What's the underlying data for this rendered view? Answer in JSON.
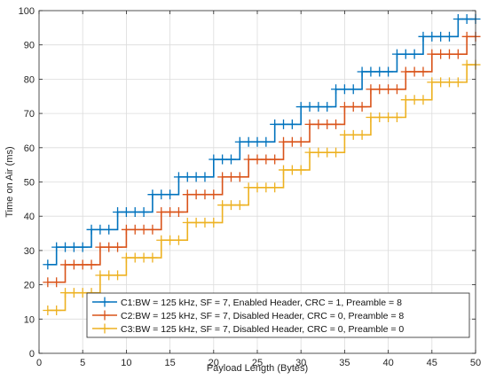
{
  "chart_data": {
    "type": "line",
    "xlabel": "Payload Length (Bytes)",
    "ylabel": "Time on Air (ms)",
    "xlim": [
      0,
      50
    ],
    "ylim": [
      0,
      100
    ],
    "xticks": [
      0,
      5,
      10,
      15,
      20,
      25,
      30,
      35,
      40,
      45,
      50
    ],
    "yticks": [
      0,
      10,
      20,
      30,
      40,
      50,
      60,
      70,
      80,
      90,
      100
    ],
    "grid": true,
    "legend_position": "lower-right",
    "step_plot": true,
    "marker": "plus",
    "x": [
      1,
      2,
      3,
      4,
      5,
      6,
      7,
      8,
      9,
      10,
      11,
      12,
      13,
      14,
      15,
      16,
      17,
      18,
      19,
      20,
      21,
      22,
      23,
      24,
      25,
      26,
      27,
      28,
      29,
      30,
      31,
      32,
      33,
      34,
      35,
      36,
      37,
      38,
      39,
      40,
      41,
      42,
      43,
      44,
      45,
      46,
      47,
      48,
      49,
      50
    ],
    "series": [
      {
        "name": "C1:BW = 125 kHz, SF = 7, Enabled Header, CRC = 1, Preamble = 8",
        "color": "#0072BD",
        "values": [
          25.9,
          30.98,
          30.98,
          30.98,
          30.98,
          36.1,
          36.1,
          36.1,
          41.22,
          41.22,
          41.22,
          41.22,
          46.34,
          46.34,
          46.34,
          51.46,
          51.46,
          51.46,
          51.46,
          56.58,
          56.58,
          56.58,
          61.7,
          61.7,
          61.7,
          61.7,
          66.82,
          66.82,
          66.82,
          71.94,
          71.94,
          71.94,
          71.94,
          77.06,
          77.06,
          77.06,
          82.18,
          82.18,
          82.18,
          82.18,
          87.3,
          87.3,
          87.3,
          92.42,
          92.42,
          92.42,
          92.42,
          97.54,
          97.54,
          97.54
        ]
      },
      {
        "name": "C2:BW = 125 kHz, SF = 7, Disabled Header, CRC = 0, Preamble = 8",
        "color": "#D95319",
        "values": [
          20.74,
          20.74,
          25.86,
          25.86,
          25.86,
          25.86,
          30.98,
          30.98,
          30.98,
          36.1,
          36.1,
          36.1,
          36.1,
          41.22,
          41.22,
          41.22,
          46.34,
          46.34,
          46.34,
          46.34,
          51.46,
          51.46,
          51.46,
          56.58,
          56.58,
          56.58,
          56.58,
          61.7,
          61.7,
          61.7,
          66.82,
          66.82,
          66.82,
          66.82,
          71.94,
          71.94,
          71.94,
          77.06,
          77.06,
          77.06,
          77.06,
          82.18,
          82.18,
          82.18,
          87.3,
          87.3,
          87.3,
          87.3,
          92.42,
          92.42
        ]
      },
      {
        "name": "C3:BW = 125 kHz, SF = 7, Disabled Header, CRC = 0, Preamble = 0",
        "color": "#EDB120",
        "values": [
          12.54,
          12.54,
          17.66,
          17.66,
          17.66,
          17.66,
          22.78,
          22.78,
          22.78,
          27.9,
          27.9,
          27.9,
          27.9,
          33.02,
          33.02,
          33.02,
          38.14,
          38.14,
          38.14,
          38.14,
          43.26,
          43.26,
          43.26,
          48.38,
          48.38,
          48.38,
          48.38,
          53.5,
          53.5,
          53.5,
          58.62,
          58.62,
          58.62,
          58.62,
          63.74,
          63.74,
          63.74,
          68.86,
          68.86,
          68.86,
          68.86,
          73.98,
          73.98,
          73.98,
          79.1,
          79.1,
          79.1,
          79.1,
          84.22,
          84.22
        ]
      }
    ]
  }
}
